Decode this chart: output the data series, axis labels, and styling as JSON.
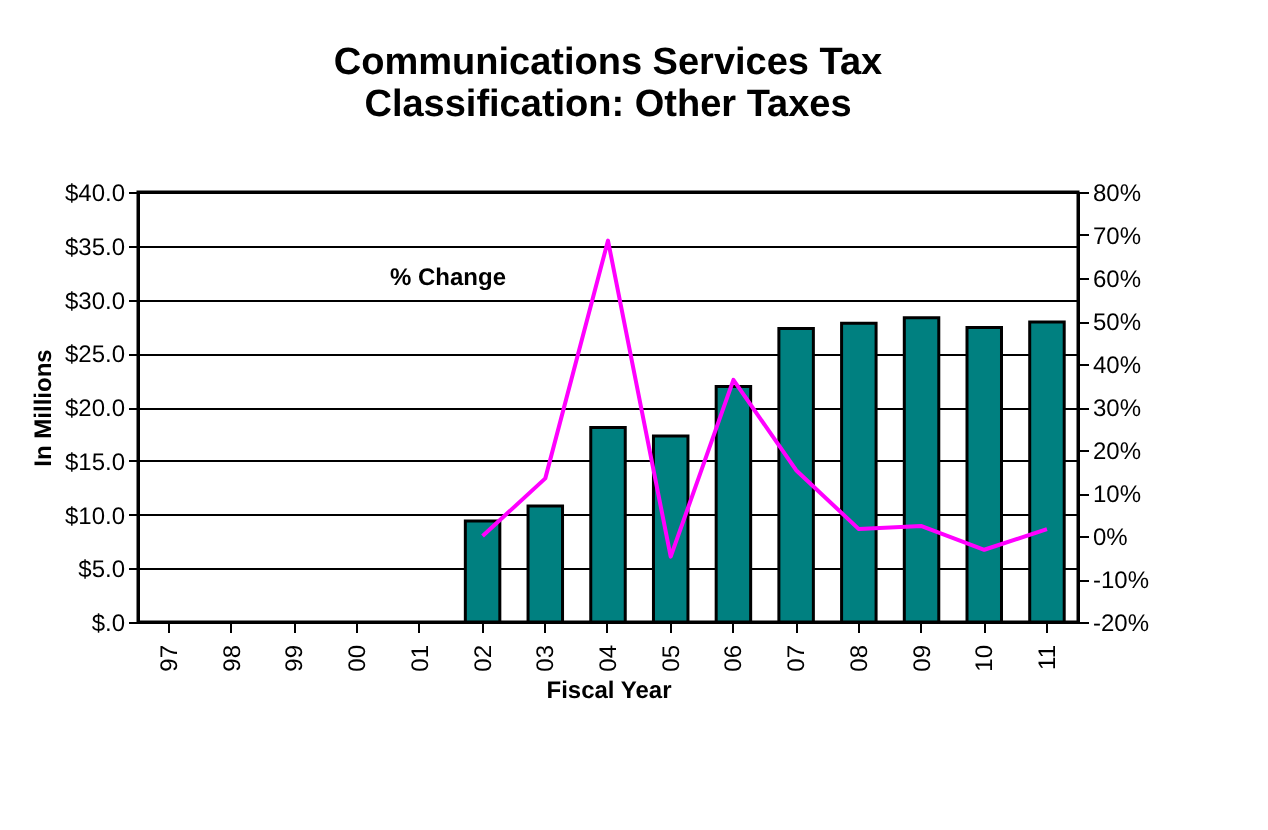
{
  "chart_data": {
    "type": "bar",
    "title": "Communications Services Tax Classification: Other Taxes",
    "xlabel": "Fiscal Year",
    "ylabel": "In Millions",
    "categories": [
      "97",
      "98",
      "99",
      "00",
      "01",
      "02",
      "03",
      "04",
      "05",
      "06",
      "07",
      "08",
      "09",
      "10",
      "11"
    ],
    "series": [
      {
        "color": "#008080",
        "values": [
          null,
          null,
          null,
          null,
          null,
          9.4,
          10.8,
          18.1,
          17.3,
          21.9,
          27.3,
          27.8,
          28.3,
          27.4,
          27.9
        ]
      },
      {
        "type": "line",
        "axis": "y2",
        "name": "% Change",
        "color": "#ff00ff",
        "values": [
          null,
          null,
          null,
          null,
          null,
          0,
          13.4,
          68.7,
          -4.8,
          36.3,
          15.3,
          1.6,
          2.3,
          -3.2,
          1.6
        ]
      }
    ],
    "ylim": [
      0,
      40
    ],
    "yticks": [
      {
        "value": 0,
        "label": "$.0"
      },
      {
        "value": 5,
        "label": "$5.0"
      },
      {
        "value": 10,
        "label": "$10.0"
      },
      {
        "value": 15,
        "label": "$15.0"
      },
      {
        "value": 20,
        "label": "$20.0"
      },
      {
        "value": 25,
        "label": "$25.0"
      },
      {
        "value": 30,
        "label": "$30.0"
      },
      {
        "value": 35,
        "label": "$35.0"
      },
      {
        "value": 40,
        "label": "$40.0"
      }
    ],
    "y2lim": [
      -20,
      80
    ],
    "y2ticks": [
      {
        "value": -20,
        "label": "-20%"
      },
      {
        "value": -10,
        "label": "-10%"
      },
      {
        "value": 0,
        "label": "0%"
      },
      {
        "value": 10,
        "label": "10%"
      },
      {
        "value": 20,
        "label": "20%"
      },
      {
        "value": 30,
        "label": "30%"
      },
      {
        "value": 40,
        "label": "40%"
      },
      {
        "value": 50,
        "label": "50%"
      },
      {
        "value": 60,
        "label": "60%"
      },
      {
        "value": 70,
        "label": "70%"
      },
      {
        "value": 80,
        "label": "80%"
      }
    ],
    "grid": "y"
  }
}
